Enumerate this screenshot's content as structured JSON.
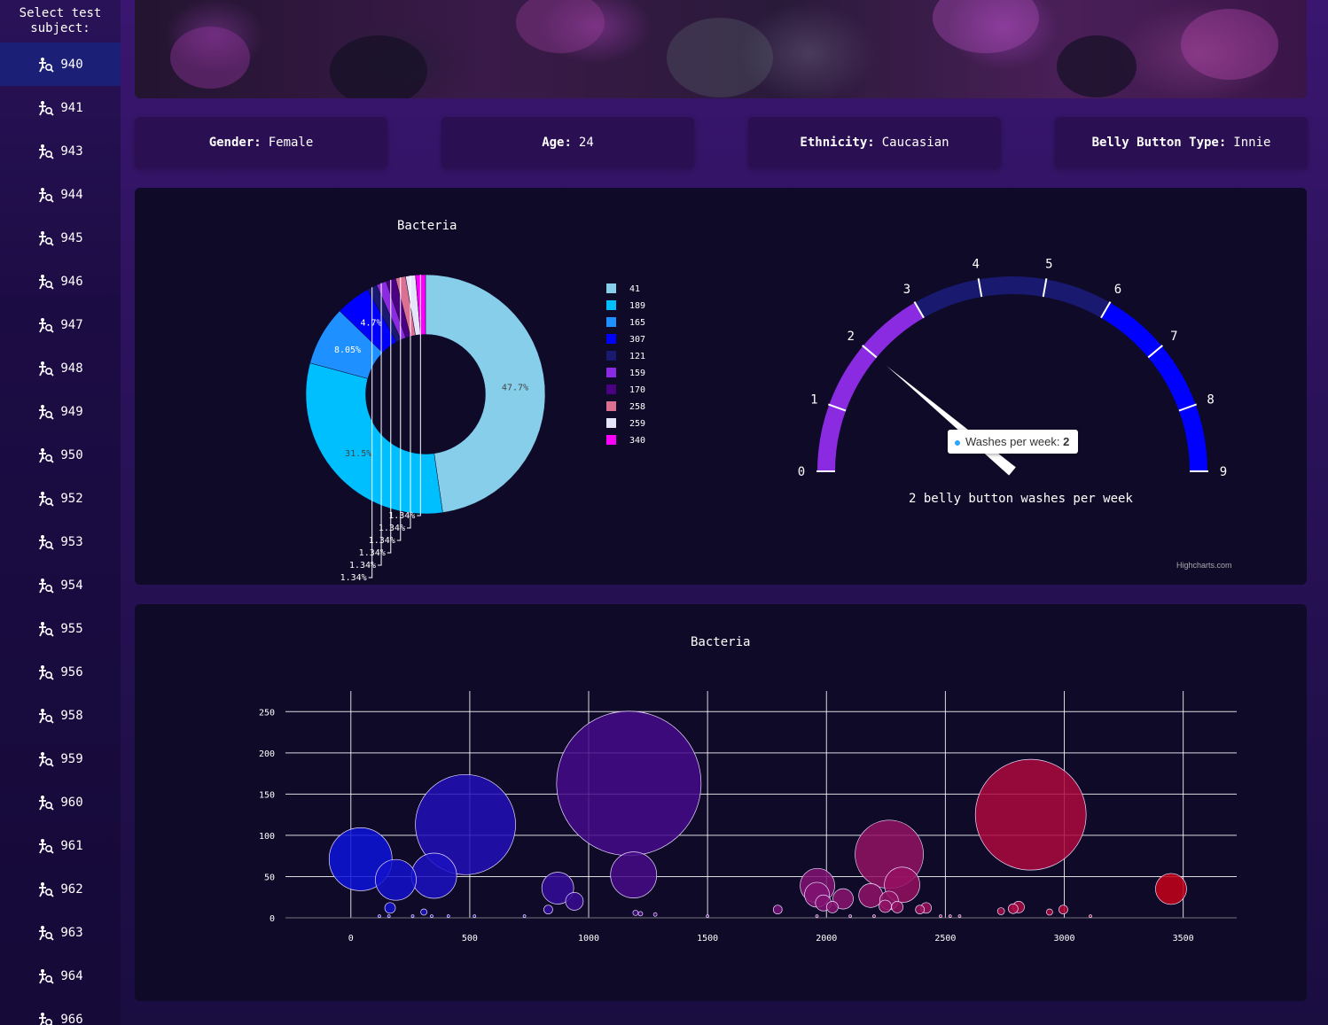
{
  "sidebar": {
    "title": "Select test subject:",
    "subjects": [
      "940",
      "941",
      "943",
      "944",
      "945",
      "946",
      "947",
      "948",
      "949",
      "950",
      "952",
      "953",
      "954",
      "955",
      "956",
      "958",
      "959",
      "960",
      "961",
      "962",
      "963",
      "964",
      "966"
    ],
    "active": "940",
    "icon": "search-person-icon"
  },
  "info": {
    "gender_label": "Gender:",
    "gender": "Female",
    "age_label": "Age:",
    "age": "24",
    "ethnicity_label": "Ethnicity:",
    "ethnicity": "Caucasian",
    "bbtype_label": "Belly Button Type:",
    "bbtype": "Innie"
  },
  "gauge": {
    "caption": "2 belly button washes per week",
    "tooltip_label": "Washes per week:",
    "tooltip_value": "2",
    "credits": "Highcharts.com",
    "min": 0,
    "max": 9,
    "value": 2,
    "ticks": [
      "0",
      "1",
      "2",
      "3",
      "4",
      "5",
      "6",
      "7",
      "8",
      "9"
    ],
    "band_colors": [
      "#8a2be2",
      "#8a2be2",
      "#8a2be2",
      "#191970",
      "#191970",
      "#191970",
      "#0000ff",
      "#0000ff",
      "#0000ff"
    ]
  },
  "chart_data": [
    {
      "type": "pie",
      "title": "Bacteria",
      "hole": 0.5,
      "slices": [
        {
          "label": "41",
          "value": 47.7,
          "display": "47.7%",
          "color": "#87ceeb"
        },
        {
          "label": "189",
          "value": 31.5,
          "display": "31.5%",
          "color": "#00bfff"
        },
        {
          "label": "165",
          "value": 8.05,
          "display": "8.05%",
          "color": "#1e90ff"
        },
        {
          "label": "307",
          "value": 4.7,
          "display": "4.7%",
          "color": "#0000ff"
        },
        {
          "label": "121",
          "value": 1.34,
          "display": "1.34%",
          "color": "#191970"
        },
        {
          "label": "159",
          "value": 1.34,
          "display": "1.34%",
          "color": "#8a2be2"
        },
        {
          "label": "170",
          "value": 1.34,
          "display": "1.34%",
          "color": "#4b0082"
        },
        {
          "label": "258",
          "value": 1.34,
          "display": "1.34%",
          "color": "#db7093"
        },
        {
          "label": "259",
          "value": 1.34,
          "display": "1.34%",
          "color": "#e6e6fa"
        },
        {
          "label": "340",
          "value": 1.34,
          "display": "1.34%",
          "color": "#ff00ff"
        }
      ]
    },
    {
      "type": "scatter",
      "title": "Bacteria",
      "xlim": [
        -275,
        3725
      ],
      "ylim": [
        0,
        275
      ],
      "xticks": [
        0,
        500,
        1000,
        1500,
        2000,
        2500,
        3000,
        3500
      ],
      "yticks": [
        0,
        50,
        100,
        150,
        200,
        250
      ],
      "grid": true,
      "points": [
        {
          "x": 41,
          "y": 71,
          "size": 71
        },
        {
          "x": 189,
          "y": 46,
          "size": 46
        },
        {
          "x": 165,
          "y": 12,
          "size": 12
        },
        {
          "x": 350,
          "y": 51,
          "size": 51
        },
        {
          "x": 482,
          "y": 113,
          "size": 113
        },
        {
          "x": 307,
          "y": 7,
          "size": 7
        },
        {
          "x": 870,
          "y": 36,
          "size": 36
        },
        {
          "x": 830,
          "y": 10,
          "size": 10
        },
        {
          "x": 940,
          "y": 20,
          "size": 20
        },
        {
          "x": 1169,
          "y": 163,
          "size": 163
        },
        {
          "x": 1189,
          "y": 52,
          "size": 52
        },
        {
          "x": 1197,
          "y": 6,
          "size": 6
        },
        {
          "x": 1218,
          "y": 5,
          "size": 5
        },
        {
          "x": 1280,
          "y": 4,
          "size": 4
        },
        {
          "x": 1795,
          "y": 10,
          "size": 10
        },
        {
          "x": 1962,
          "y": 39,
          "size": 39
        },
        {
          "x": 1960,
          "y": 28,
          "size": 28
        },
        {
          "x": 1987,
          "y": 18,
          "size": 18
        },
        {
          "x": 2025,
          "y": 13,
          "size": 13
        },
        {
          "x": 2070,
          "y": 23,
          "size": 23
        },
        {
          "x": 2186,
          "y": 27,
          "size": 27
        },
        {
          "x": 2264,
          "y": 77,
          "size": 77
        },
        {
          "x": 2263,
          "y": 21,
          "size": 21
        },
        {
          "x": 2298,
          "y": 13,
          "size": 13
        },
        {
          "x": 2247,
          "y": 14,
          "size": 14
        },
        {
          "x": 2318,
          "y": 40,
          "size": 40
        },
        {
          "x": 2393,
          "y": 10,
          "size": 10
        },
        {
          "x": 2419,
          "y": 12,
          "size": 12
        },
        {
          "x": 2859,
          "y": 125,
          "size": 125
        },
        {
          "x": 2734,
          "y": 8,
          "size": 8
        },
        {
          "x": 2785,
          "y": 11,
          "size": 11
        },
        {
          "x": 2808,
          "y": 13,
          "size": 13
        },
        {
          "x": 2938,
          "y": 7,
          "size": 7
        },
        {
          "x": 2996,
          "y": 10,
          "size": 10
        },
        {
          "x": 3449,
          "y": 35,
          "size": 35
        },
        {
          "x": 120,
          "y": 2,
          "size": 2
        },
        {
          "x": 160,
          "y": 2,
          "size": 2
        },
        {
          "x": 260,
          "y": 2,
          "size": 2
        },
        {
          "x": 340,
          "y": 2,
          "size": 2
        },
        {
          "x": 410,
          "y": 2,
          "size": 2
        },
        {
          "x": 520,
          "y": 2,
          "size": 2
        },
        {
          "x": 730,
          "y": 2,
          "size": 2
        },
        {
          "x": 1500,
          "y": 2,
          "size": 2
        },
        {
          "x": 1960,
          "y": 2,
          "size": 2
        },
        {
          "x": 2100,
          "y": 2,
          "size": 2
        },
        {
          "x": 2200,
          "y": 2,
          "size": 2
        },
        {
          "x": 2480,
          "y": 2,
          "size": 2
        },
        {
          "x": 2520,
          "y": 2,
          "size": 2
        },
        {
          "x": 2560,
          "y": 2,
          "size": 2
        },
        {
          "x": 3110,
          "y": 2,
          "size": 2
        }
      ]
    }
  ]
}
